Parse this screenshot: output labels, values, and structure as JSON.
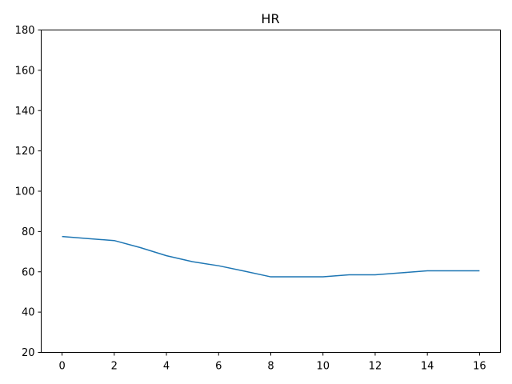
{
  "chart_data": {
    "type": "line",
    "title": "HR",
    "xlabel": "",
    "ylabel": "",
    "xlim": [
      -0.8,
      16.8
    ],
    "ylim": [
      20,
      180
    ],
    "x_ticks": [
      0,
      2,
      4,
      6,
      8,
      10,
      12,
      14,
      16
    ],
    "y_ticks": [
      20,
      40,
      60,
      80,
      100,
      120,
      140,
      160,
      180
    ],
    "grid": false,
    "series": [
      {
        "color": "#1f77b4",
        "x": [
          0,
          1,
          2,
          3,
          4,
          5,
          6,
          7,
          8,
          9,
          10,
          11,
          12,
          13,
          14,
          15,
          16
        ],
        "y": [
          77.5,
          76.5,
          75.5,
          72,
          68,
          65,
          63,
          60.3,
          57.5,
          57.5,
          57.5,
          58.5,
          58.5,
          59.5,
          60.5,
          60.5,
          60.5
        ]
      }
    ]
  }
}
